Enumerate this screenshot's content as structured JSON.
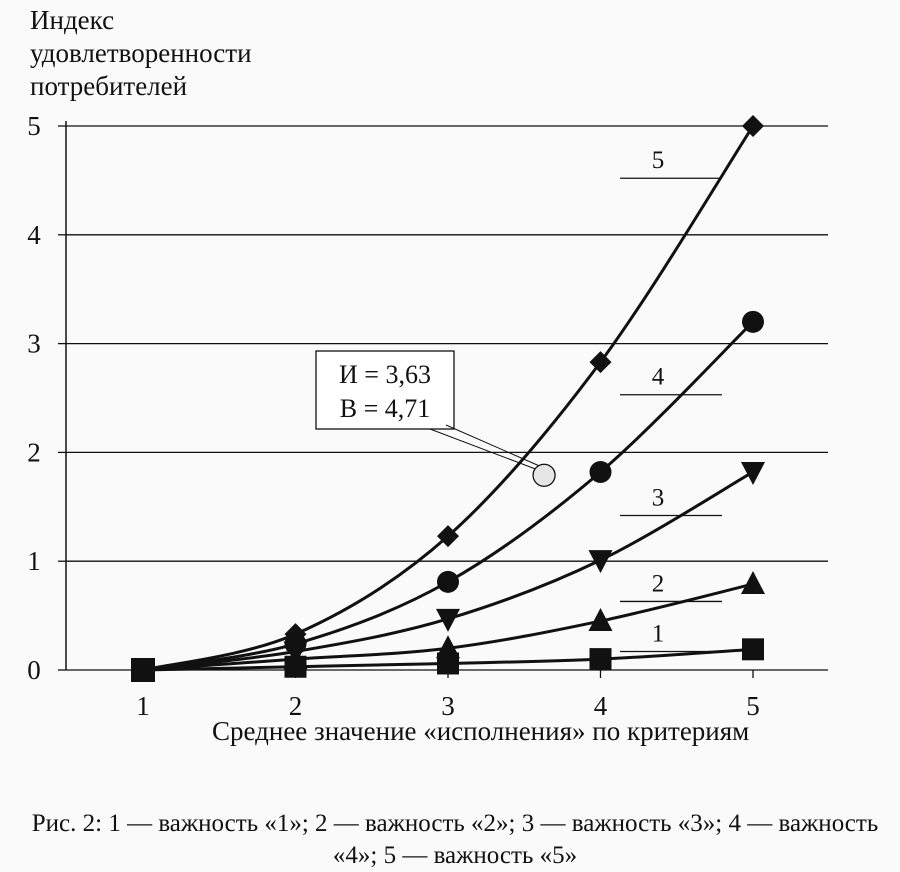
{
  "chart_data": {
    "type": "line",
    "title": "",
    "ylabel": "Индекс\nудовлетворенности\nпотребителей",
    "xlabel": "Среднее значение «исполнения» по критериям",
    "x": [
      1,
      2,
      3,
      4,
      5
    ],
    "xlim": [
      1,
      5
    ],
    "ylim": [
      0,
      5
    ],
    "y_ticks": [
      "0",
      "1",
      "2",
      "3",
      "4",
      "5"
    ],
    "x_ticks": [
      "1",
      "2",
      "3",
      "4",
      "5"
    ],
    "grid": "horizontal",
    "series": [
      {
        "name": "1",
        "marker": "square",
        "values": [
          0,
          0.03,
          0.06,
          0.1,
          0.19
        ]
      },
      {
        "name": "2",
        "marker": "triangle-up",
        "values": [
          0,
          0.1,
          0.2,
          0.45,
          0.79
        ]
      },
      {
        "name": "3",
        "marker": "triangle-down",
        "values": [
          0,
          0.17,
          0.47,
          1.01,
          1.82
        ]
      },
      {
        "name": "4",
        "marker": "circle",
        "values": [
          0,
          0.24,
          0.81,
          1.82,
          3.2
        ]
      },
      {
        "name": "5",
        "marker": "diamond",
        "values": [
          0,
          0.33,
          1.23,
          2.83,
          5.0
        ]
      }
    ],
    "annotation": {
      "x": 3.63,
      "y": 1.79,
      "lines": [
        "И = 3,63",
        "В = 4,71"
      ]
    }
  },
  "caption": "Рис. 2: 1 — важность «1»; 2 — важность «2»; 3 — важность «3»; 4 — важность «4»; 5 — важность «5»"
}
